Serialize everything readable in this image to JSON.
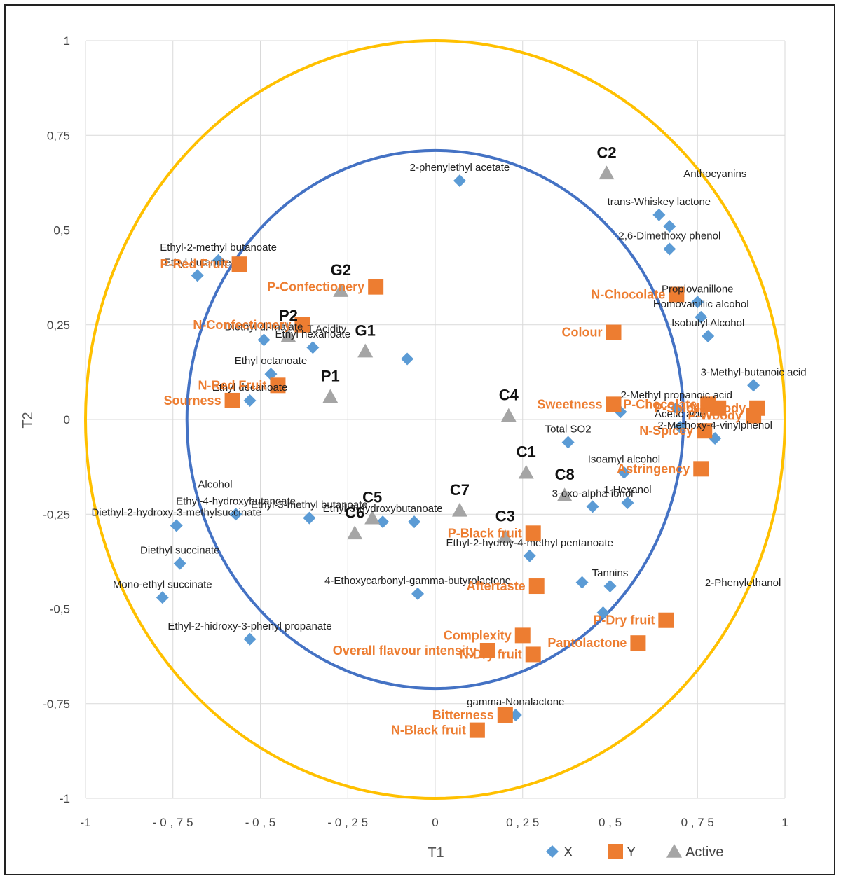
{
  "chart_data": {
    "type": "scatter",
    "title": "",
    "xlabel": "T1",
    "ylabel": "T2",
    "xlim": [
      -1,
      1
    ],
    "ylim": [
      -1,
      1
    ],
    "x_ticks": [
      "-1",
      "- 0 , 7 5",
      "- 0 , 5",
      "- 0 , 2 5",
      "0",
      "0 , 2 5",
      "0 , 5",
      "0 , 7 5",
      "1"
    ],
    "y_ticks": [
      "1",
      "0,75",
      "0,5",
      "0,25",
      "0",
      "-0,25",
      "-0,5",
      "-0,75",
      "-1"
    ],
    "grid": true,
    "circles": [
      {
        "name": "outer",
        "radius": 1.0,
        "color": "#FFC000"
      },
      {
        "name": "inner",
        "radius": 0.71,
        "color": "#4472C4"
      }
    ],
    "legend": [
      {
        "label": "X",
        "color": "#5B9BD5",
        "marker": "diamond"
      },
      {
        "label": "Y",
        "color": "#ED7D31",
        "marker": "square"
      },
      {
        "label": "Active",
        "color": "#A5A5A5",
        "marker": "triangle"
      }
    ],
    "series": [
      {
        "name": "X",
        "points": [
          {
            "x": 0.07,
            "y": 0.63,
            "label": "2-phenylethyl acetate"
          },
          {
            "x": -0.62,
            "y": 0.42,
            "label": "Ethyl-2-methyl butanoate"
          },
          {
            "x": -0.68,
            "y": 0.38,
            "label": "Ethyl butanote"
          },
          {
            "x": -0.49,
            "y": 0.21,
            "label": "Diethyl dl-malate"
          },
          {
            "x": -0.35,
            "y": 0.19,
            "label": "Ethyl hexanoate"
          },
          {
            "x": -0.47,
            "y": 0.12,
            "label": "Ethyl octanoate"
          },
          {
            "x": -0.53,
            "y": 0.05,
            "label": "Ethyl decanoate"
          },
          {
            "x": -0.08,
            "y": 0.16,
            "label": ""
          },
          {
            "x": 0.64,
            "y": 0.54,
            "label": "trans-Whiskey lactone"
          },
          {
            "x": 0.67,
            "y": 0.51,
            "label": ""
          },
          {
            "x": 0.67,
            "y": 0.45,
            "label": "2,6-Dimethoxy phenol"
          },
          {
            "x": 0.75,
            "y": 0.31,
            "label": "Propiovanillone"
          },
          {
            "x": 0.76,
            "y": 0.27,
            "label": "Homovanillic alcohol"
          },
          {
            "x": 0.78,
            "y": 0.22,
            "label": "Isobutyl Alcohol"
          },
          {
            "x": 0.91,
            "y": 0.09,
            "label": "3-Methyl-butanoic acid"
          },
          {
            "x": 0.69,
            "y": 0.03,
            "label": "2-Methyl propanoic acid"
          },
          {
            "x": 0.53,
            "y": 0.02,
            "label": ""
          },
          {
            "x": 0.7,
            "y": -0.02,
            "label": "Acetic acid"
          },
          {
            "x": 0.8,
            "y": -0.05,
            "label": "2-Methoxy-4-vinylphenol"
          },
          {
            "x": 0.38,
            "y": -0.06,
            "label": "Total SO2"
          },
          {
            "x": 0.54,
            "y": -0.14,
            "label": "Isoamyl alcohol"
          },
          {
            "x": 0.45,
            "y": -0.23,
            "label": "3-oxo-alpha-ionol"
          },
          {
            "x": 0.55,
            "y": -0.22,
            "label": "1-Hexanol"
          },
          {
            "x": 0.27,
            "y": -0.36,
            "label": "Ethyl-2-hydroy-4-methyl pentanoate"
          },
          {
            "x": 0.42,
            "y": -0.43,
            "label": ""
          },
          {
            "x": 0.5,
            "y": -0.44,
            "label": "Tannins"
          },
          {
            "x": 0.48,
            "y": -0.51,
            "label": ""
          },
          {
            "x": 0.23,
            "y": -0.78,
            "label": "gamma-Nonalactone"
          },
          {
            "x": -0.57,
            "y": -0.25,
            "label": "Ethyl-4-hydroxybutanoate"
          },
          {
            "x": -0.36,
            "y": -0.26,
            "label": "Ethyl-3-methyl butanoate"
          },
          {
            "x": -0.15,
            "y": -0.27,
            "label": "Ethyl-3-hydroxybutanoate"
          },
          {
            "x": -0.06,
            "y": -0.27,
            "label": ""
          },
          {
            "x": -0.74,
            "y": -0.28,
            "label": "Diethyl-2-hydroxy-3-methylsuccinate"
          },
          {
            "x": -0.73,
            "y": -0.38,
            "label": "Diethyl succinate"
          },
          {
            "x": -0.78,
            "y": -0.47,
            "label": "Mono-ethyl succinate"
          },
          {
            "x": -0.05,
            "y": -0.46,
            "label": "4-Ethoxycarbonyl-gamma-butyrolactone"
          },
          {
            "x": -0.53,
            "y": -0.58,
            "label": "Ethyl-2-hidroxy-3-phenyl propanate"
          }
        ]
      },
      {
        "name": "Y",
        "points": [
          {
            "x": -0.56,
            "y": 0.41,
            "label": "P-Red Fruit"
          },
          {
            "x": -0.17,
            "y": 0.35,
            "label": "P-Confectionery"
          },
          {
            "x": -0.38,
            "y": 0.25,
            "label": "N-Confectionery"
          },
          {
            "x": -0.45,
            "y": 0.09,
            "label": "N-Red Fruit"
          },
          {
            "x": -0.58,
            "y": 0.05,
            "label": "Sourness"
          },
          {
            "x": 0.69,
            "y": 0.33,
            "label": "N-Chocolate"
          },
          {
            "x": 0.51,
            "y": 0.23,
            "label": "Colour"
          },
          {
            "x": 0.51,
            "y": 0.04,
            "label": "Sweetness"
          },
          {
            "x": 0.78,
            "y": 0.04,
            "label": "P-Chocolate"
          },
          {
            "x": 0.81,
            "y": 0.03,
            "label": "P-Spicey"
          },
          {
            "x": 0.92,
            "y": 0.03,
            "label": "N-Woody"
          },
          {
            "x": 0.91,
            "y": 0.01,
            "label": "P-Woody"
          },
          {
            "x": 0.77,
            "y": -0.03,
            "label": "N-Spicey"
          },
          {
            "x": 0.76,
            "y": -0.13,
            "label": "Astringency"
          },
          {
            "x": 0.28,
            "y": -0.3,
            "label": "P-Black fruit"
          },
          {
            "x": 0.29,
            "y": -0.44,
            "label": "Aftertaste"
          },
          {
            "x": 0.66,
            "y": -0.53,
            "label": "P-Dry fruit"
          },
          {
            "x": 0.58,
            "y": -0.59,
            "label": "Pantolactone"
          },
          {
            "x": 0.25,
            "y": -0.57,
            "label": "Complexity"
          },
          {
            "x": 0.28,
            "y": -0.62,
            "label": "N-Dry fruit"
          },
          {
            "x": 0.15,
            "y": -0.61,
            "label": "Overall flavour intensity"
          },
          {
            "x": 0.2,
            "y": -0.78,
            "label": "Bitterness"
          },
          {
            "x": 0.12,
            "y": -0.82,
            "label": "N-Black fruit"
          }
        ]
      },
      {
        "name": "Active",
        "points": [
          {
            "x": 0.49,
            "y": 0.65,
            "label": "C2"
          },
          {
            "x": -0.27,
            "y": 0.34,
            "label": "G2"
          },
          {
            "x": -0.42,
            "y": 0.22,
            "label": "P2"
          },
          {
            "x": -0.2,
            "y": 0.18,
            "label": "G1"
          },
          {
            "x": -0.3,
            "y": 0.06,
            "label": "P1"
          },
          {
            "x": 0.21,
            "y": 0.01,
            "label": "C4"
          },
          {
            "x": 0.26,
            "y": -0.14,
            "label": "C1"
          },
          {
            "x": 0.37,
            "y": -0.2,
            "label": "C8"
          },
          {
            "x": 0.07,
            "y": -0.24,
            "label": "C7"
          },
          {
            "x": -0.18,
            "y": -0.26,
            "label": "C5"
          },
          {
            "x": -0.23,
            "y": -0.3,
            "label": "C6"
          },
          {
            "x": 0.2,
            "y": -0.31,
            "label": "C3"
          }
        ]
      }
    ],
    "extra_text": [
      "Anthocyanins",
      "T.Acidity",
      "Alcohol",
      "2-Phenylethanol"
    ]
  }
}
